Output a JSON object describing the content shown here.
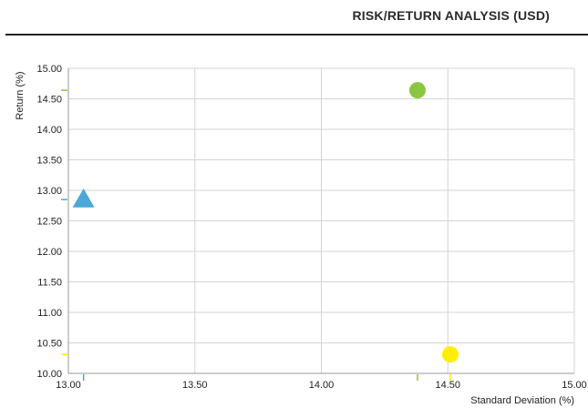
{
  "title": "RISK/RETURN ANALYSIS (USD)",
  "chart_data": {
    "type": "scatter",
    "xlabel": "Standard Deviation (%)",
    "ylabel": "Return (%)",
    "xlim": [
      13.0,
      15.0
    ],
    "ylim": [
      10.0,
      15.0
    ],
    "x_ticks": [
      "13.00",
      "13.50",
      "14.00",
      "14.50",
      "15.00"
    ],
    "y_ticks": [
      "15.00",
      "14.50",
      "14.00",
      "13.50",
      "13.00",
      "12.50",
      "12.00",
      "11.50",
      "11.00",
      "10.50",
      "10.00"
    ],
    "grid": true,
    "legend": "none",
    "series": [
      {
        "marker": "circle",
        "color": "#8cc63f",
        "x": 14.38,
        "y": 14.64
      },
      {
        "marker": "triangle",
        "color": "#4aa9d8",
        "x": 13.06,
        "y": 12.85
      },
      {
        "marker": "circle",
        "color": "#ffee00",
        "x": 14.51,
        "y": 10.31
      }
    ]
  }
}
